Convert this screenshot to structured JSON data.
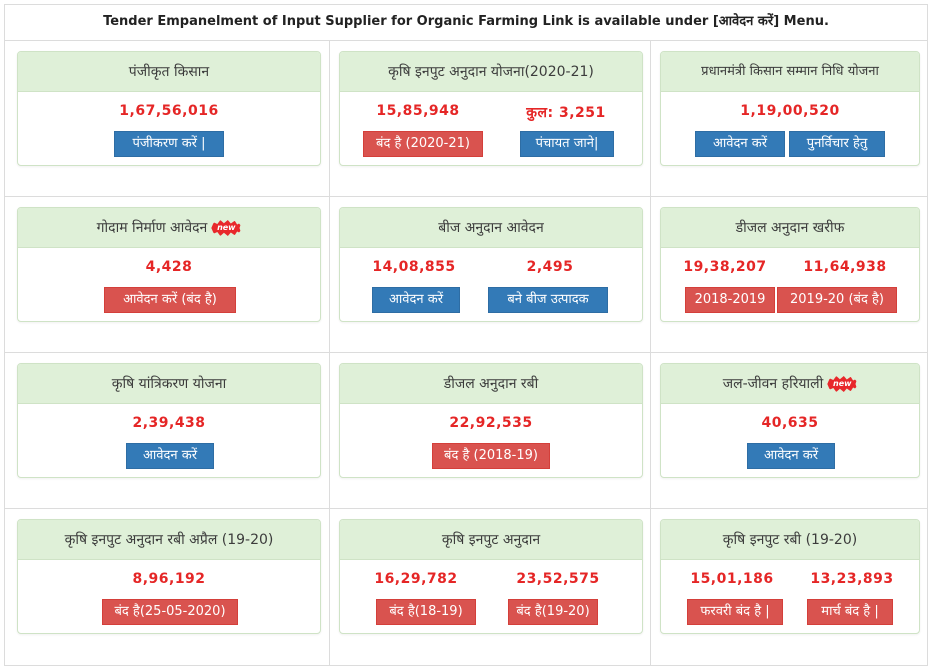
{
  "notice": "Tender Empanelment of Input Supplier for Organic Farming Link is available under [आवेदन करें] Menu.",
  "new_badge": "new",
  "colors": {
    "header_bg": "#dff0d8",
    "count": "#e52626",
    "blue_button": "#337ab7",
    "red_button": "#d9534f"
  },
  "tiles": [
    {
      "title": "पंजीकृत किसान",
      "count1": "1,67,56,016",
      "btn1": "पंजीकरण करें |"
    },
    {
      "title": "कृषि इनपुट अनुदान योजना(2020-21)",
      "count1": "15,85,948",
      "count2": "कुल: 3,251",
      "btn1": "बंद है (2020-21)",
      "btn2": "पंचायत जाने|"
    },
    {
      "title": "प्रधानमंत्री किसान सम्मान निधि योजना",
      "count1": "1,19,00,520",
      "btn1": "आवेदन करें",
      "btn2": "पुनर्विचार हेतु"
    },
    {
      "title": "गोदाम निर्माण आवेदन",
      "count1": "4,428",
      "btn1": "आवेदन करें (बंद है)"
    },
    {
      "title": "बीज अनुदान आवेदन",
      "count1": "14,08,855",
      "count2": "2,495",
      "btn1": "आवेदन करें",
      "btn2": "बने बीज उत्पादक"
    },
    {
      "title": "डीजल अनुदान खरीफ",
      "count1": "19,38,207",
      "count2": "11,64,938",
      "btn1": "2018-2019",
      "btn2": "2019-20 (बंद है)"
    },
    {
      "title": "कृषि यांत्रिकरण योजना",
      "count1": "2,39,438",
      "btn1": "आवेदन करें"
    },
    {
      "title": "डीजल अनुदान रबी",
      "count1": "22,92,535",
      "btn1": "बंद है (2018-19)"
    },
    {
      "title": "जल-जीवन हरियाली",
      "count1": "40,635",
      "btn1": "आवेदन करें"
    },
    {
      "title": "कृषि इनपुट अनुदान रबी अप्रैल (19-20)",
      "count1": "8,96,192",
      "btn1": "बंद है(25-05-2020)"
    },
    {
      "title": "कृषि इनपुट अनुदान",
      "count1": "16,29,782",
      "count2": "23,52,575",
      "btn1": "बंद है(18-19)",
      "btn2": "बंद है(19-20)"
    },
    {
      "title": "कृषि इनपुट रबी (19-20)",
      "count1": "15,01,186",
      "count2": "13,23,893",
      "btn1": "फरवरी बंद है |",
      "btn2": "मार्च बंद है |"
    }
  ]
}
